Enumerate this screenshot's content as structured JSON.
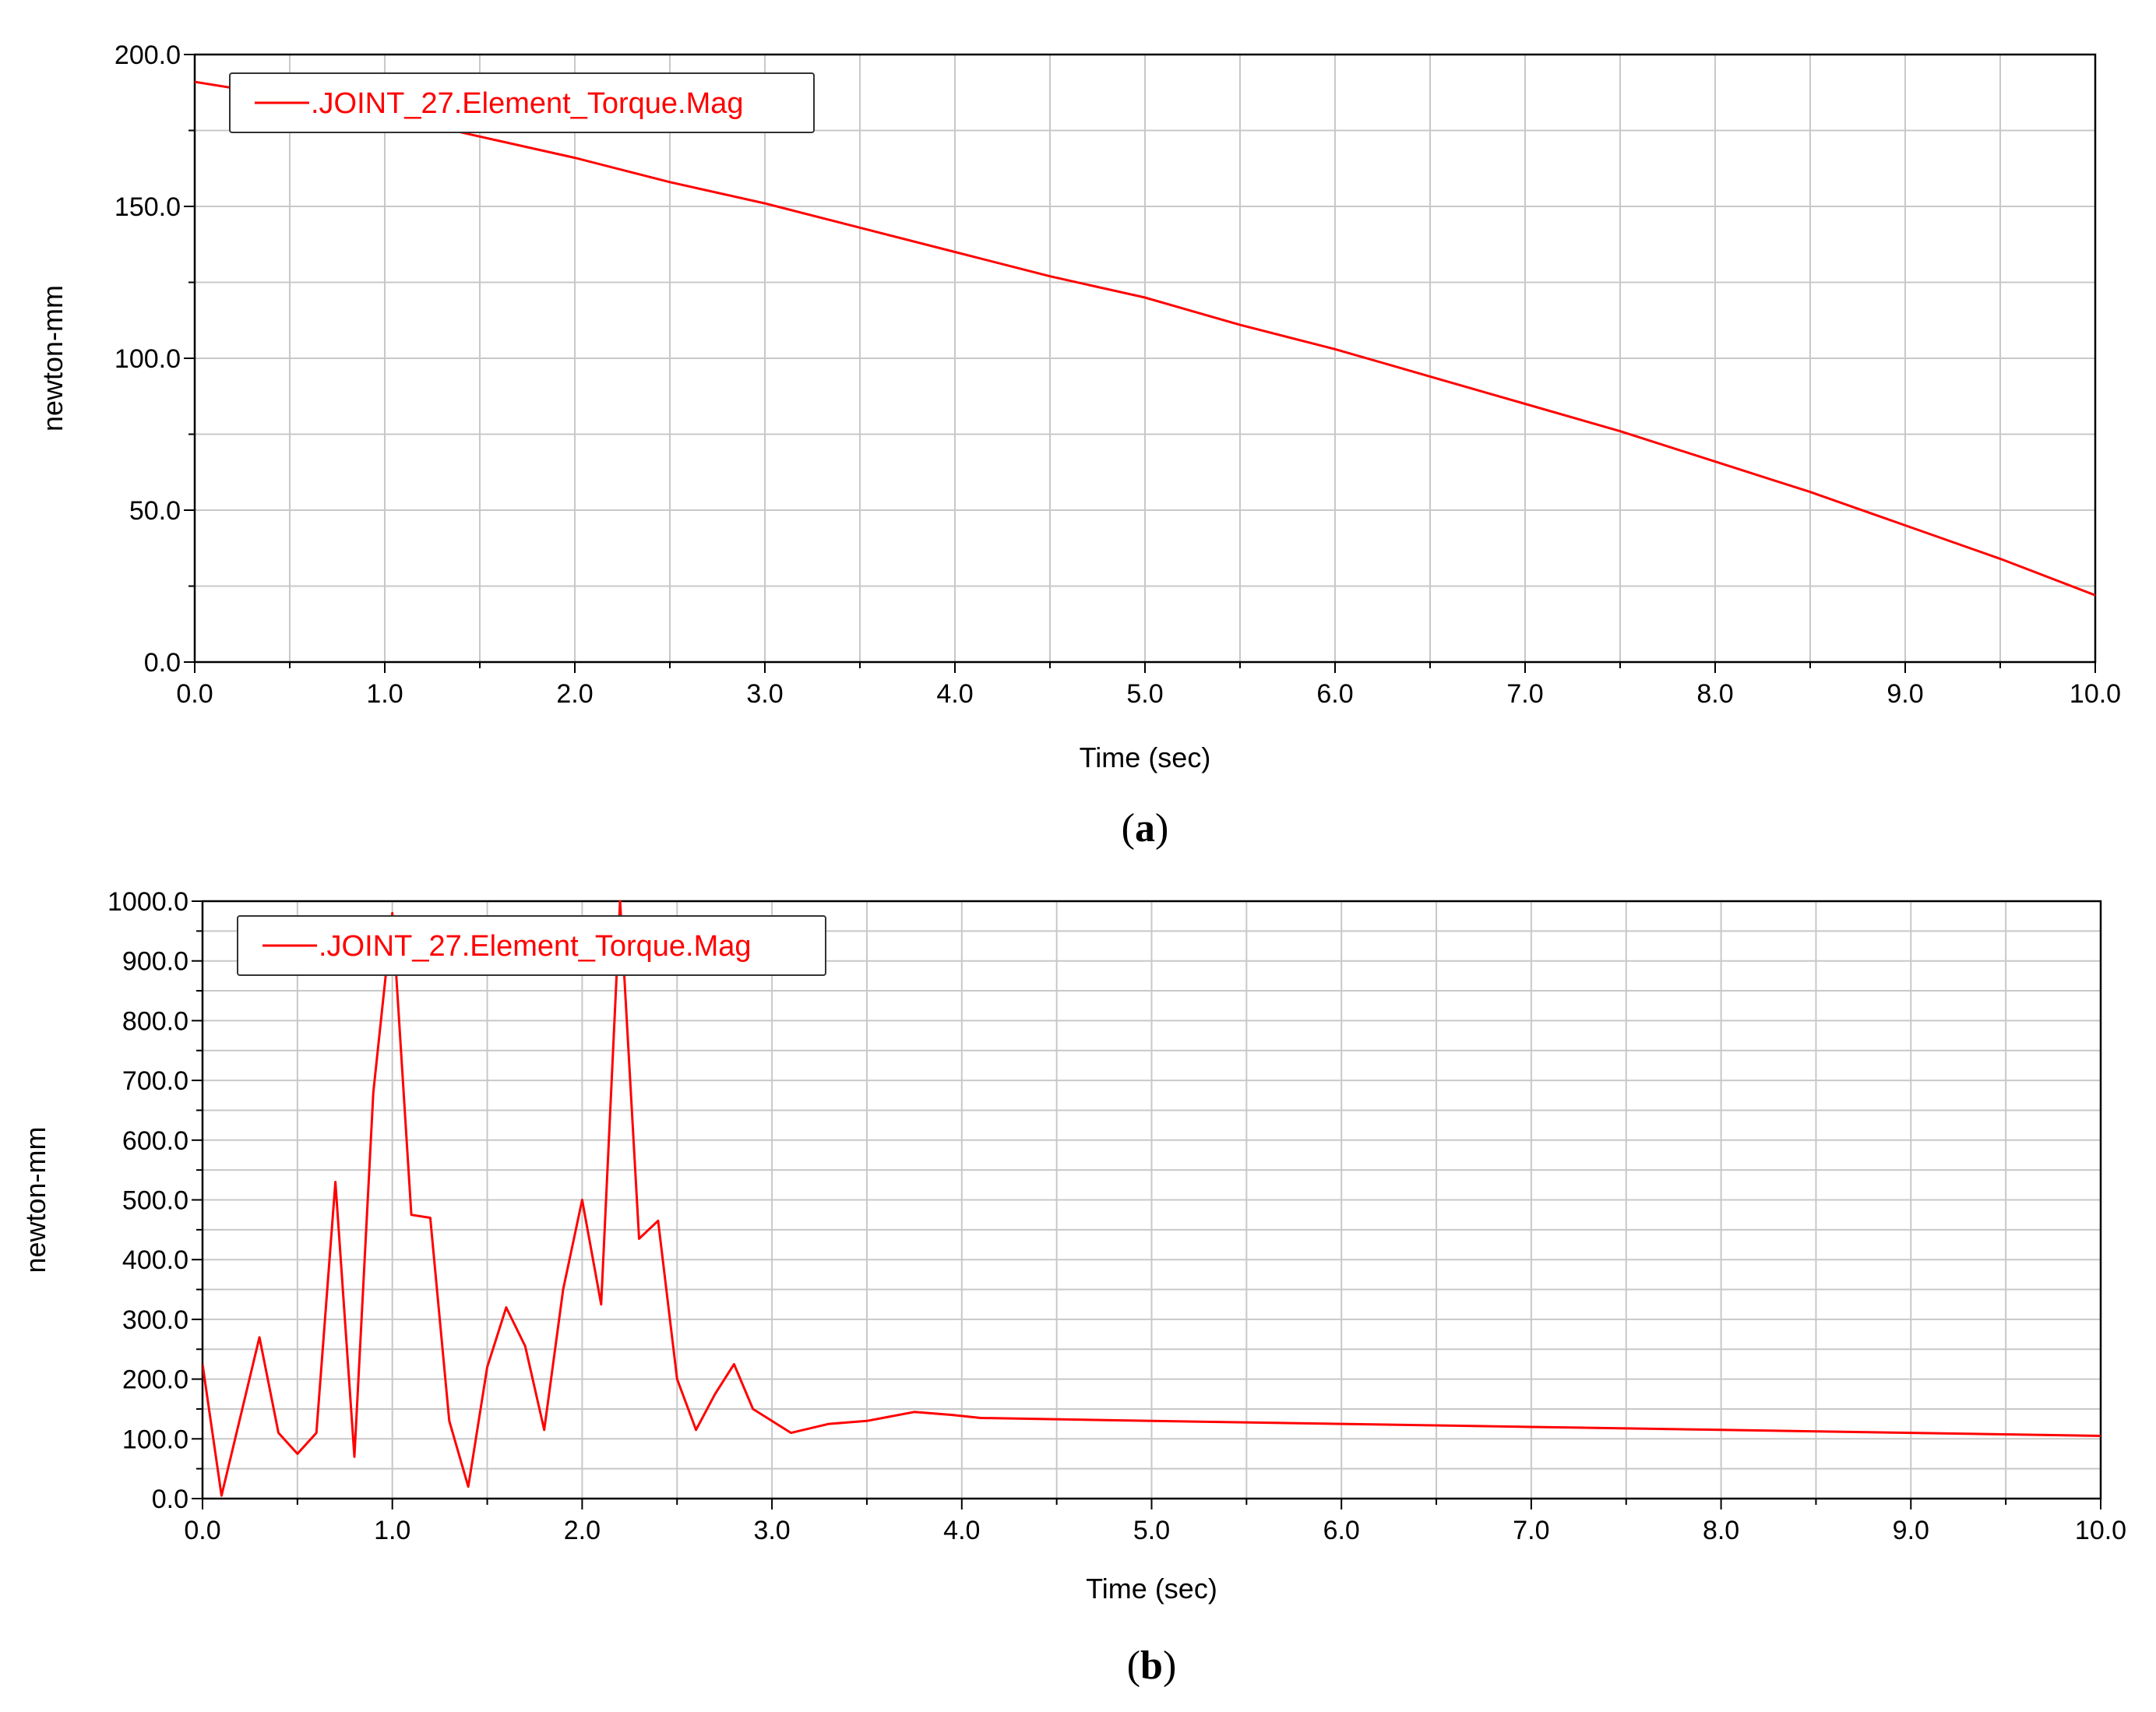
{
  "chart_data": [
    {
      "type": "line",
      "panel_label": "a",
      "xlabel": "Time (sec)",
      "ylabel": "newton-mm",
      "xlim": [
        0,
        10
      ],
      "ylim": [
        0,
        200
      ],
      "xticks": [
        "0.0",
        "1.0",
        "2.0",
        "3.0",
        "4.0",
        "5.0",
        "6.0",
        "7.0",
        "8.0",
        "9.0",
        "10.0"
      ],
      "yticks": [
        "0.0",
        "50.0",
        "100.0",
        "150.0",
        "200.0"
      ],
      "grid": true,
      "legend_position": "top-left",
      "series": [
        {
          "name": ".JOINT_27.Element_Torque.Mag",
          "color": "#ff0000",
          "x": [
            0.0,
            0.5,
            1.0,
            1.5,
            2.0,
            2.5,
            3.0,
            3.5,
            4.0,
            4.5,
            5.0,
            5.5,
            6.0,
            6.5,
            7.0,
            7.5,
            8.0,
            8.5,
            9.0,
            9.5,
            10.0
          ],
          "y": [
            191,
            186,
            180,
            173,
            166,
            158,
            151,
            143,
            135,
            127,
            120,
            111,
            103,
            94,
            85,
            76,
            66,
            56,
            45,
            34,
            22
          ]
        }
      ]
    },
    {
      "type": "line",
      "panel_label": "b",
      "xlabel": "Time (sec)",
      "ylabel": "newton-mm",
      "xlim": [
        0,
        10
      ],
      "ylim": [
        0,
        1000
      ],
      "xticks": [
        "0.0",
        "1.0",
        "2.0",
        "3.0",
        "4.0",
        "5.0",
        "6.0",
        "7.0",
        "8.0",
        "9.0",
        "10.0"
      ],
      "yticks": [
        "0.0",
        "100.0",
        "200.0",
        "300.0",
        "400.0",
        "500.0",
        "600.0",
        "700.0",
        "800.0",
        "900.0",
        "1000.0"
      ],
      "grid": true,
      "legend_position": "top-left",
      "series": [
        {
          "name": ".JOINT_27.Element_Torque.Mag",
          "color": "#ff0000",
          "x": [
            0.0,
            0.1,
            0.3,
            0.4,
            0.5,
            0.6,
            0.7,
            0.8,
            0.9,
            1.0,
            1.1,
            1.2,
            1.3,
            1.4,
            1.5,
            1.6,
            1.7,
            1.8,
            1.9,
            2.0,
            2.1,
            2.2,
            2.3,
            2.4,
            2.5,
            2.6,
            2.7,
            2.8,
            2.9,
            3.1,
            3.3,
            3.5,
            3.75,
            3.95,
            4.1,
            5.0,
            6.0,
            7.0,
            8.0,
            9.0,
            10.0
          ],
          "y": [
            225,
            5,
            270,
            110,
            75,
            110,
            530,
            70,
            680,
            980,
            475,
            470,
            130,
            20,
            220,
            320,
            255,
            115,
            350,
            500,
            325,
            1000,
            435,
            465,
            200,
            115,
            175,
            225,
            150,
            110,
            125,
            130,
            145,
            140,
            135,
            130,
            125,
            120,
            115,
            110,
            105
          ]
        }
      ]
    }
  ]
}
